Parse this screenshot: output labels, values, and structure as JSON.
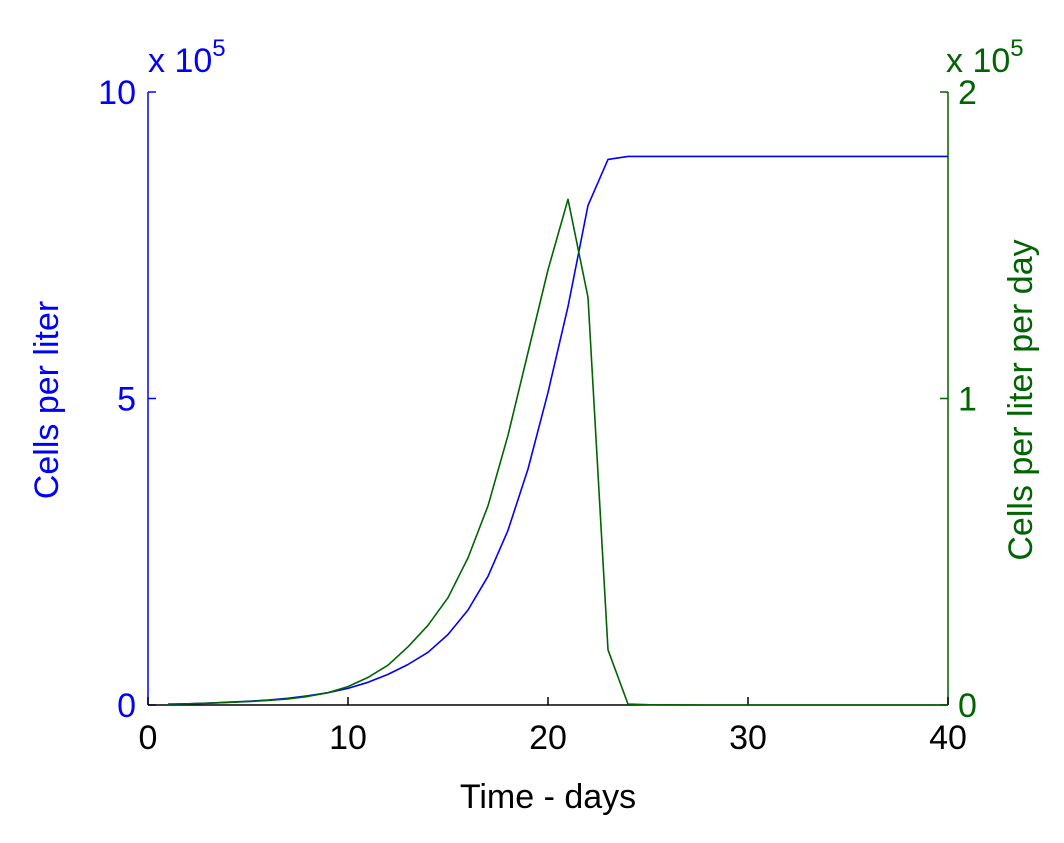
{
  "chart_data": {
    "type": "line",
    "title": "",
    "xlabel": "Time - days",
    "xlim": [
      0,
      40
    ],
    "xticks": [
      0,
      10,
      20,
      30,
      40
    ],
    "y_left": {
      "label": "Cells per liter",
      "lim": [
        0,
        10
      ],
      "ticks": [
        0,
        5,
        10
      ],
      "multiplier_base": "x 10",
      "multiplier_power": "5",
      "color": "#0000ff"
    },
    "y_right": {
      "label": "Cells per liter per day",
      "lim": [
        0,
        2
      ],
      "ticks": [
        0,
        1,
        2
      ],
      "multiplier_base": "x 10",
      "multiplier_power": "5",
      "color": "#006400"
    },
    "grid": false,
    "series": [
      {
        "axis": "left",
        "color": "#0000ff",
        "x": [
          1,
          2,
          3,
          4,
          5,
          6,
          7,
          8,
          9,
          10,
          11,
          12,
          13,
          14,
          15,
          16,
          17,
          18,
          19,
          20,
          21,
          22,
          23,
          24,
          25,
          26,
          27,
          28,
          29,
          30,
          31,
          32,
          33,
          34,
          35,
          36,
          37,
          38,
          39,
          40
        ],
        "y": [
          0.01,
          0.02,
          0.03,
          0.045,
          0.06,
          0.08,
          0.11,
          0.15,
          0.2,
          0.27,
          0.37,
          0.5,
          0.66,
          0.86,
          1.15,
          1.55,
          2.1,
          2.85,
          3.85,
          5.1,
          6.5,
          8.15,
          8.9,
          8.95,
          8.95,
          8.95,
          8.95,
          8.95,
          8.95,
          8.95,
          8.95,
          8.95,
          8.95,
          8.95,
          8.95,
          8.95,
          8.95,
          8.95,
          8.95,
          8.95
        ]
      },
      {
        "axis": "right",
        "color": "#006400",
        "x": [
          1,
          2,
          3,
          4,
          5,
          6,
          7,
          8,
          9,
          10,
          11,
          12,
          13,
          14,
          15,
          16,
          17,
          18,
          19,
          20,
          21,
          22,
          23,
          24,
          25,
          26,
          27,
          28,
          29,
          30,
          31,
          32,
          33,
          34,
          35,
          36,
          37,
          38,
          39,
          40
        ],
        "y": [
          0.003,
          0.004,
          0.006,
          0.008,
          0.011,
          0.015,
          0.02,
          0.028,
          0.04,
          0.06,
          0.09,
          0.13,
          0.19,
          0.26,
          0.35,
          0.48,
          0.65,
          0.88,
          1.15,
          1.42,
          1.65,
          1.33,
          0.18,
          0.003,
          0.001,
          0.0005,
          0.0002,
          0.0001,
          0.0,
          0.0,
          0.0,
          0.0,
          0.0,
          0.0,
          0.0,
          0.0,
          0.0,
          0.0,
          0.0,
          0.0
        ]
      }
    ]
  }
}
